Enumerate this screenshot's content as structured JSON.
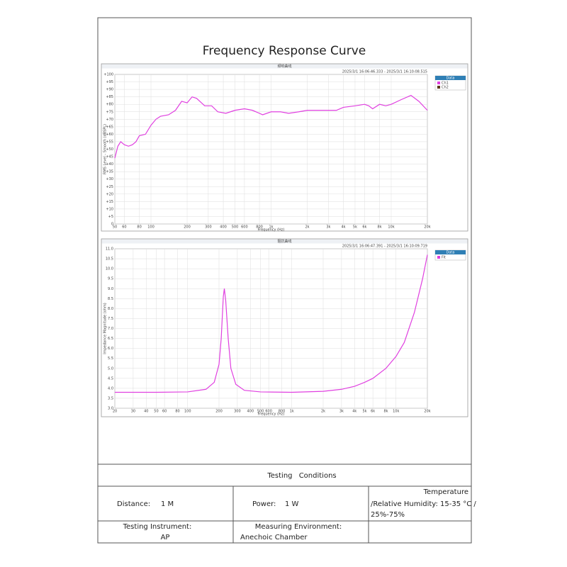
{
  "title": "Frequency Response Curve",
  "chart_data": [
    {
      "type": "line",
      "title": "频响曲线",
      "subtitle": "2025/3/1 16:06:46.333 - 2025/3/1 16:10:08.515",
      "x_label": "Frequency (Hz)",
      "y_label": "RMS Level - Smooth (dBSPL)",
      "x": [
        50,
        53,
        56,
        60,
        65,
        70,
        75,
        80,
        90,
        100,
        110,
        120,
        140,
        160,
        180,
        200,
        220,
        240,
        280,
        320,
        360,
        420,
        500,
        600,
        700,
        800,
        850,
        1000,
        1200,
        1400,
        1700,
        2000,
        3000,
        3500,
        4000,
        5000,
        6000,
        6500,
        7000,
        8000,
        9000,
        10000,
        12000,
        14600,
        17000,
        20000
      ],
      "series": [
        {
          "name": "Ch1",
          "color": "#e040e0",
          "values": [
            44,
            52,
            55,
            53,
            52,
            53,
            55,
            59,
            60,
            66,
            70,
            72,
            73,
            76,
            82,
            81,
            85,
            84,
            79,
            79,
            75,
            74,
            76,
            77,
            76,
            74,
            73,
            75,
            75,
            74,
            75,
            76,
            76,
            76,
            78,
            79,
            80,
            79,
            77,
            80,
            79,
            80,
            83,
            86,
            82,
            76
          ]
        },
        {
          "name": "Ch2",
          "color": "#5a3a1a"
        }
      ],
      "legend_title": "Data",
      "log_x": true,
      "grid": true,
      "xlim": [
        50,
        20000
      ],
      "ylim": [
        0,
        100
      ],
      "xticks": [
        50,
        60,
        80,
        100,
        200,
        300,
        400,
        500,
        600,
        800,
        {
          "value": 1000,
          "label": "1k"
        },
        {
          "value": 2000,
          "label": "2k"
        },
        {
          "value": 3000,
          "label": "3k"
        },
        {
          "value": 4000,
          "label": "4k"
        },
        {
          "value": 5000,
          "label": "5k"
        },
        {
          "value": 6000,
          "label": "6k"
        },
        {
          "value": 8000,
          "label": "8k"
        },
        {
          "value": 10000,
          "label": "10k"
        },
        {
          "value": 20000,
          "label": "20k"
        }
      ],
      "yticks": [
        0,
        {
          "value": 5,
          "label": "+5"
        },
        {
          "value": 10,
          "label": "+10"
        },
        {
          "value": 15,
          "label": "+15"
        },
        {
          "value": 20,
          "label": "+20"
        },
        {
          "value": 25,
          "label": "+25"
        },
        {
          "value": 30,
          "label": "+30"
        },
        {
          "value": 35,
          "label": "+35"
        },
        {
          "value": 40,
          "label": "+40"
        },
        {
          "value": 45,
          "label": "+45"
        },
        {
          "value": 50,
          "label": "+50"
        },
        {
          "value": 55,
          "label": "+55"
        },
        {
          "value": 60,
          "label": "+60"
        },
        {
          "value": 65,
          "label": "+65"
        },
        {
          "value": 70,
          "label": "+70"
        },
        {
          "value": 75,
          "label": "+75"
        },
        {
          "value": 80,
          "label": "+80"
        },
        {
          "value": 85,
          "label": "+85"
        },
        {
          "value": 90,
          "label": "+90"
        },
        {
          "value": 95,
          "label": "+95"
        },
        {
          "value": 100,
          "label": "+100"
        }
      ]
    },
    {
      "type": "line",
      "title": "阻抗曲线",
      "subtitle": "2025/3/1 16:06:47.391 - 2025/3/1 16:10:09.719",
      "x_label": "Frequency (Hz)",
      "y_label": "Impedance Magnitude (ohm)",
      "x": [
        20,
        50,
        100,
        150,
        180,
        200,
        210,
        220,
        225,
        232,
        245,
        260,
        290,
        350,
        500,
        1000,
        2000,
        3000,
        4000,
        5000,
        6000,
        8000,
        10000,
        12000,
        15000,
        18000,
        20000
      ],
      "series": [
        {
          "name": "Fit",
          "color": "#e040e0",
          "values": [
            3.8,
            3.8,
            3.82,
            3.95,
            4.3,
            5.2,
            6.5,
            8.6,
            9.0,
            8.4,
            6.5,
            5.0,
            4.2,
            3.9,
            3.82,
            3.8,
            3.85,
            3.95,
            4.1,
            4.3,
            4.5,
            5.0,
            5.6,
            6.3,
            7.8,
            9.5,
            10.7
          ]
        }
      ],
      "legend_title": "Data",
      "log_x": true,
      "grid": true,
      "xlim": [
        20,
        20000
      ],
      "ylim": [
        3,
        11
      ],
      "xticks": [
        20,
        30,
        40,
        50,
        60,
        80,
        100,
        200,
        300,
        400,
        500,
        600,
        800,
        {
          "value": 1000,
          "label": "1k"
        },
        {
          "value": 2000,
          "label": "2k"
        },
        {
          "value": 3000,
          "label": "3k"
        },
        {
          "value": 4000,
          "label": "4k"
        },
        {
          "value": 5000,
          "label": "5k"
        },
        {
          "value": 6000,
          "label": "6k"
        },
        {
          "value": 8000,
          "label": "8k"
        },
        {
          "value": 10000,
          "label": "10k"
        },
        {
          "value": 20000,
          "label": "20k"
        }
      ],
      "yticks": [
        {
          "value": 3,
          "label": "3.0"
        },
        3.5,
        {
          "value": 4,
          "label": "4.0"
        },
        4.5,
        {
          "value": 5,
          "label": "5.0"
        },
        5.5,
        {
          "value": 6,
          "label": "6.0"
        },
        6.5,
        {
          "value": 7,
          "label": "7.0"
        },
        7.5,
        {
          "value": 8,
          "label": "8.0"
        },
        8.5,
        {
          "value": 9,
          "label": "9.0"
        },
        9.5,
        {
          "value": 10,
          "label": "10.0"
        },
        10.5,
        {
          "value": 11,
          "label": "11.0"
        }
      ]
    }
  ],
  "conditions": {
    "heading": "Testing Conditions",
    "distance_label": "Distance:",
    "distance": "1 M",
    "power_label": "Power:",
    "power": "1 W",
    "temperature": [
      "Temperature",
      "/Relative Humidity: 15-35 °C /",
      "25%-75%"
    ],
    "instrument_label": "Testing Instrument:",
    "instrument": "AP",
    "environment_label": "Measuring Environment:",
    "environment": "Anechoic Chamber"
  }
}
